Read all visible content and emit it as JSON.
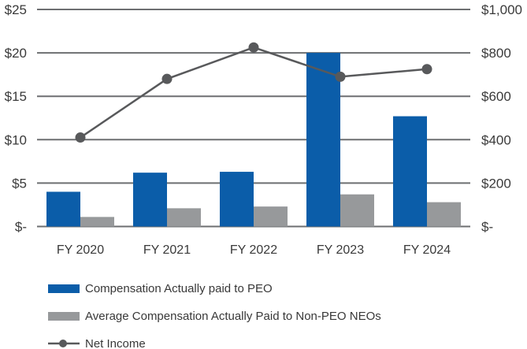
{
  "chart_data": {
    "type": "combo-bar-line",
    "title": "",
    "categories": [
      "FY 2020",
      "FY 2021",
      "FY 2022",
      "FY 2023",
      "FY 2024"
    ],
    "series": [
      {
        "name": "Compensation Actually paid to PEO",
        "type": "bar",
        "axis": "left",
        "color": "#0B5DA9",
        "values": [
          4.0,
          6.2,
          6.3,
          20.0,
          12.7
        ]
      },
      {
        "name": "Average Compensation Actually Paid to Non-PEO NEOs",
        "type": "bar",
        "axis": "left",
        "color": "#97999B",
        "values": [
          1.1,
          2.1,
          2.3,
          3.7,
          2.8
        ]
      },
      {
        "name": "Net Income",
        "type": "line",
        "axis": "right",
        "color": "#58595B",
        "values": [
          410,
          680,
          825,
          690,
          725
        ]
      }
    ],
    "left_axis": {
      "labels": [
        "$-",
        "$5",
        "$10",
        "$15",
        "$20",
        "$25"
      ],
      "min": 0,
      "max": 25
    },
    "right_axis": {
      "labels": [
        "$-",
        "$200",
        "$400",
        "$600",
        "$800",
        "$1,000"
      ],
      "min": 0,
      "max": 1000
    },
    "grid": true,
    "gridline_color": "#6D6F71",
    "text_color": "#3A3A3A",
    "legend_position": "bottom-left",
    "background": "#FFFFFF"
  },
  "legend": {
    "items": [
      {
        "label": "Compensation Actually paid to PEO",
        "swatch": "bar",
        "color": "#0B5DA9"
      },
      {
        "label": "Average Compensation Actually Paid to Non-PEO NEOs",
        "swatch": "bar",
        "color": "#97999B"
      },
      {
        "label": "Net Income",
        "swatch": "line-marker",
        "color": "#58595B"
      }
    ]
  }
}
